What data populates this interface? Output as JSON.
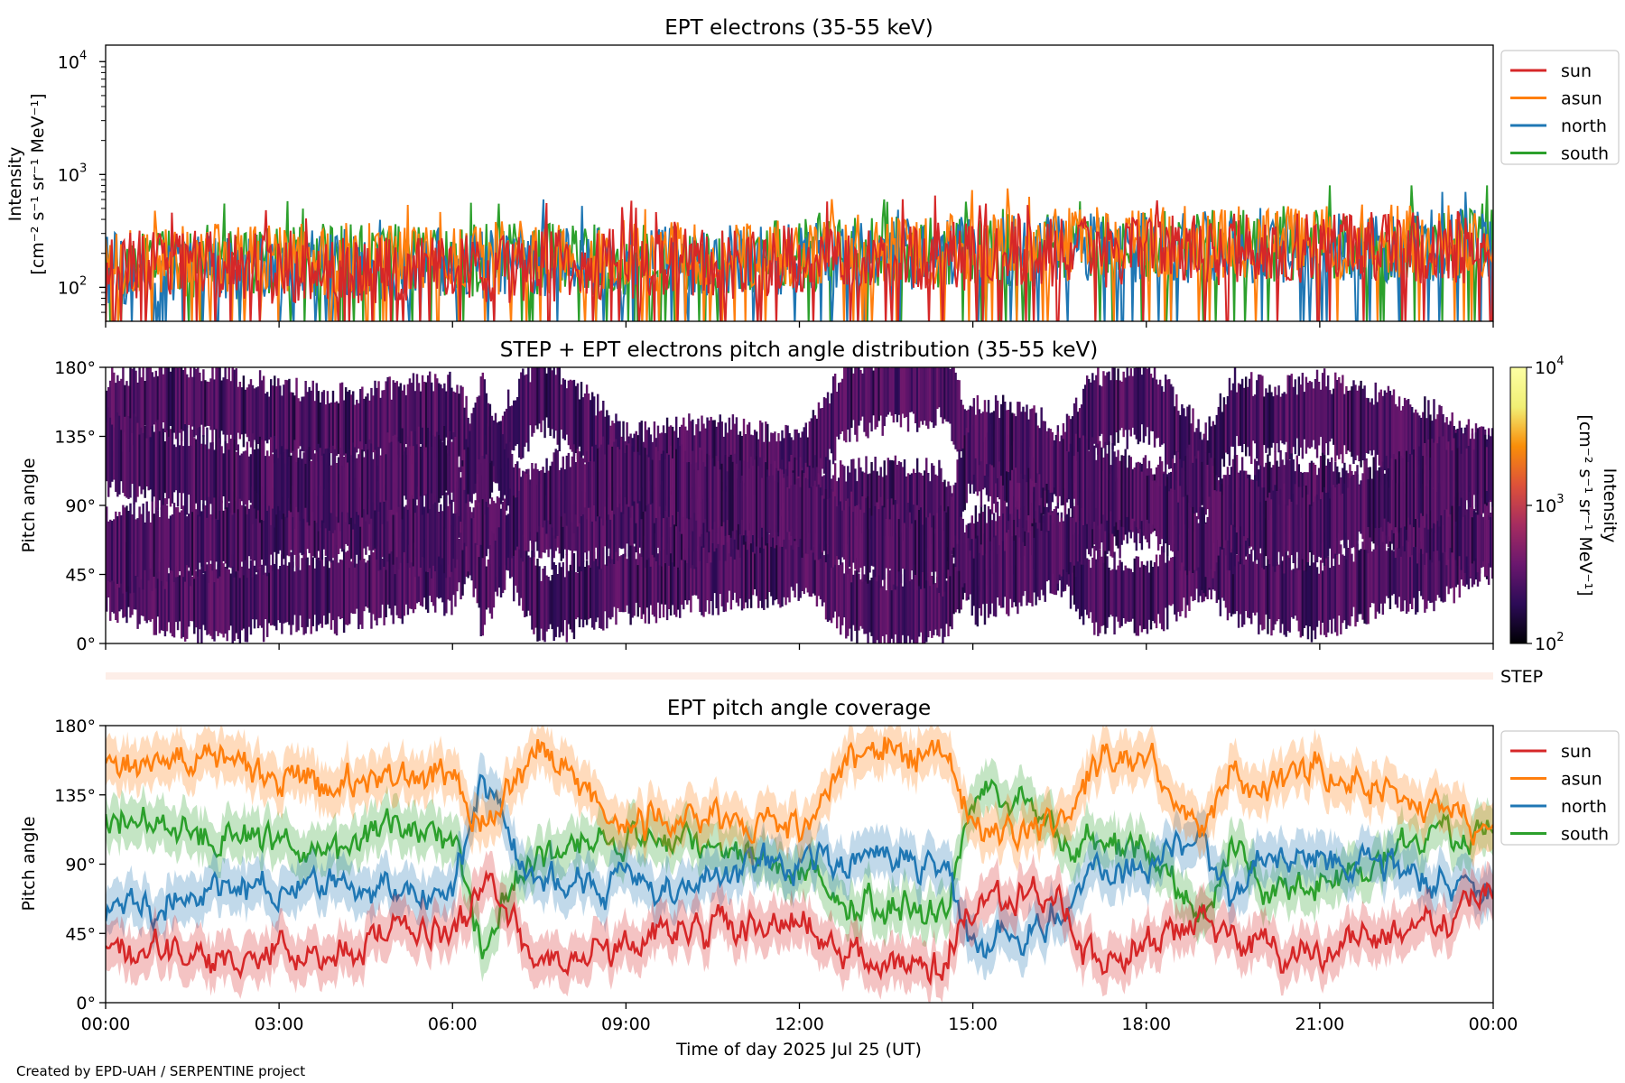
{
  "colors": {
    "sun": "#d62728",
    "asun": "#ff7f0e",
    "north": "#1f77b4",
    "south": "#2ca02c",
    "step_bar": "#fdeee8"
  },
  "chart_data": [
    {
      "type": "line",
      "title": "EPT electrons (35-55 keV)",
      "xlabel": "",
      "ylabel_line1": "Intensity",
      "ylabel_line2": "[cm⁻² s⁻¹ sr⁻¹ MeV⁻¹]",
      "yscale": "log",
      "ylim": [
        50,
        14000
      ],
      "xlim_hours": [
        0,
        24
      ],
      "yticks": [
        {
          "value": 100,
          "base": "10",
          "exp": "2"
        },
        {
          "value": 1000,
          "base": "10",
          "exp": "3"
        },
        {
          "value": 10000,
          "base": "10",
          "exp": "4"
        }
      ],
      "legend": "upper right, outside",
      "series": [
        {
          "name": "sun",
          "baseline": [
            [
              0,
              150
            ],
            [
              6,
              150
            ],
            [
              12,
              170
            ],
            [
              18,
              210
            ],
            [
              24,
              230
            ]
          ],
          "noise_range": [
            50,
            650
          ]
        },
        {
          "name": "asun",
          "baseline": [
            [
              0,
              170
            ],
            [
              6,
              180
            ],
            [
              12,
              200
            ],
            [
              18,
              250
            ],
            [
              24,
              260
            ]
          ],
          "noise_range": [
            50,
            1000
          ]
        },
        {
          "name": "north",
          "baseline": [
            [
              0,
              150
            ],
            [
              6,
              160
            ],
            [
              12,
              180
            ],
            [
              18,
              220
            ],
            [
              24,
              240
            ]
          ],
          "noise_range": [
            50,
            700
          ]
        },
        {
          "name": "south",
          "baseline": [
            [
              0,
              170
            ],
            [
              6,
              175
            ],
            [
              12,
              190
            ],
            [
              18,
              230
            ],
            [
              24,
              250
            ]
          ],
          "noise_range": [
            50,
            800
          ]
        }
      ]
    },
    {
      "type": "heatmap",
      "title": "STEP + EPT electrons pitch angle distribution (35-55 keV)",
      "ylabel": "Pitch angle",
      "ylim": [
        0,
        180
      ],
      "yticks": [
        "0°",
        "45°",
        "90°",
        "135°",
        "180°"
      ],
      "xlim_hours": [
        0,
        24
      ],
      "colorbar": {
        "label_line1": "Intensity",
        "label_line2": "[cm⁻² s⁻¹ sr⁻¹ MeV⁻¹]",
        "scale": "log",
        "range": [
          100,
          10000
        ],
        "ticks": [
          {
            "value": 100,
            "base": "10",
            "exp": "2"
          },
          {
            "value": 1000,
            "base": "10",
            "exp": "3"
          },
          {
            "value": 10000,
            "base": "10",
            "exp": "4"
          }
        ],
        "colormap": [
          "#000004",
          "#2c0b57",
          "#6a176e",
          "#a52c60",
          "#dd513a",
          "#f98e09",
          "#f1ef75",
          "#fcffa4"
        ]
      },
      "typical_intensity_range": [
        150,
        400
      ]
    },
    {
      "type": "bar",
      "label": "STEP",
      "note": "STEP pitch angle coverage strip"
    },
    {
      "type": "line",
      "title": "EPT pitch angle coverage",
      "xlabel": "Time of day 2025 Jul 25 (UT)",
      "ylabel": "Pitch angle",
      "ylim": [
        0,
        180
      ],
      "yticks": [
        "0°",
        "45°",
        "90°",
        "135°",
        "180°"
      ],
      "xlim_hours": [
        0,
        24
      ],
      "xticks": [
        "00:00",
        "03:00",
        "06:00",
        "09:00",
        "12:00",
        "15:00",
        "18:00",
        "21:00",
        "00:00"
      ],
      "legend": "upper right, outside",
      "band_halfwidth_deg": 15,
      "series": [
        {
          "name": "sun",
          "values": [
            [
              0,
              45
            ],
            [
              1,
              30
            ],
            [
              2,
              28
            ],
            [
              3,
              32
            ],
            [
              4,
              35
            ],
            [
              5,
              42
            ],
            [
              6,
              48
            ],
            [
              6.5,
              80
            ],
            [
              7,
              60
            ],
            [
              7.5,
              25
            ],
            [
              8,
              30
            ],
            [
              9,
              40
            ],
            [
              10,
              45
            ],
            [
              11,
              50
            ],
            [
              12,
              55
            ],
            [
              12.8,
              30
            ],
            [
              13.5,
              20
            ],
            [
              14.5,
              25
            ],
            [
              15,
              60
            ],
            [
              16,
              75
            ],
            [
              16.6,
              55
            ],
            [
              17,
              35
            ],
            [
              18,
              30
            ],
            [
              19,
              55
            ],
            [
              19.5,
              40
            ],
            [
              20,
              35
            ],
            [
              21,
              30
            ],
            [
              22,
              45
            ],
            [
              23,
              50
            ],
            [
              24,
              70
            ]
          ]
        },
        {
          "name": "asun",
          "values": [
            [
              0,
              150
            ],
            [
              1,
              160
            ],
            [
              2,
              155
            ],
            [
              3,
              145
            ],
            [
              4,
              140
            ],
            [
              5,
              145
            ],
            [
              6,
              150
            ],
            [
              6.5,
              110
            ],
            [
              7,
              140
            ],
            [
              7.5,
              165
            ],
            [
              8,
              150
            ],
            [
              9,
              115
            ],
            [
              10,
              120
            ],
            [
              11,
              120
            ],
            [
              12,
              110
            ],
            [
              12.8,
              160
            ],
            [
              13.5,
              165
            ],
            [
              14.5,
              170
            ],
            [
              15,
              120
            ],
            [
              16,
              100
            ],
            [
              16.6,
              120
            ],
            [
              17,
              150
            ],
            [
              18,
              160
            ],
            [
              19,
              115
            ],
            [
              19.5,
              150
            ],
            [
              20,
              145
            ],
            [
              21,
              150
            ],
            [
              22,
              140
            ],
            [
              23,
              130
            ],
            [
              24,
              110
            ]
          ]
        },
        {
          "name": "north",
          "values": [
            [
              0,
              60
            ],
            [
              1,
              65
            ],
            [
              2,
              70
            ],
            [
              3,
              75
            ],
            [
              4,
              80
            ],
            [
              5,
              75
            ],
            [
              6,
              70
            ],
            [
              6.5,
              150
            ],
            [
              7,
              100
            ],
            [
              7.5,
              80
            ],
            [
              8,
              75
            ],
            [
              9,
              80
            ],
            [
              10,
              75
            ],
            [
              11,
              85
            ],
            [
              12,
              95
            ],
            [
              12.8,
              90
            ],
            [
              13.5,
              95
            ],
            [
              14.5,
              90
            ],
            [
              15,
              40
            ],
            [
              16,
              50
            ],
            [
              16.6,
              65
            ],
            [
              17,
              80
            ],
            [
              18,
              90
            ],
            [
              19,
              105
            ],
            [
              19.5,
              70
            ],
            [
              20,
              100
            ],
            [
              21,
              95
            ],
            [
              22,
              85
            ],
            [
              23,
              80
            ],
            [
              24,
              65
            ]
          ]
        },
        {
          "name": "south",
          "values": [
            [
              0,
              125
            ],
            [
              1,
              115
            ],
            [
              2,
              110
            ],
            [
              3,
              105
            ],
            [
              4,
              100
            ],
            [
              5,
              110
            ],
            [
              6,
              115
            ],
            [
              6.5,
              30
            ],
            [
              7,
              75
            ],
            [
              7.5,
              95
            ],
            [
              8,
              100
            ],
            [
              9,
              110
            ],
            [
              10,
              100
            ],
            [
              11,
              95
            ],
            [
              12,
              85
            ],
            [
              12.8,
              70
            ],
            [
              13.5,
              65
            ],
            [
              14.5,
              60
            ],
            [
              15,
              135
            ],
            [
              16,
              130
            ],
            [
              16.6,
              110
            ],
            [
              17,
              105
            ],
            [
              18,
              95
            ],
            [
              19,
              60
            ],
            [
              19.5,
              100
            ],
            [
              20,
              75
            ],
            [
              21,
              75
            ],
            [
              22,
              95
            ],
            [
              23,
              105
            ],
            [
              24,
              115
            ]
          ]
        }
      ]
    }
  ],
  "credit": "Created by EPD-UAH / SERPENTINE project"
}
